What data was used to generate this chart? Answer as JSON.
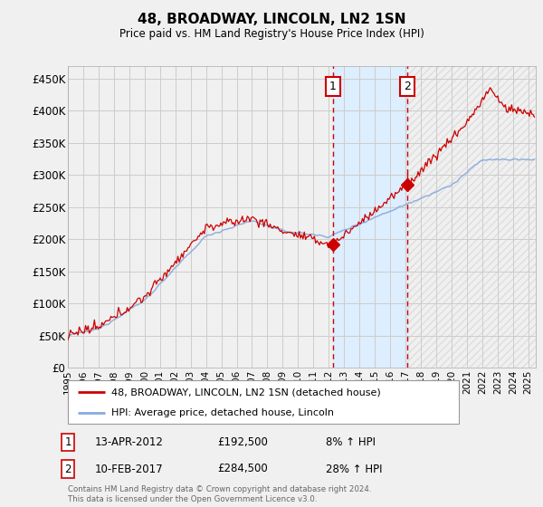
{
  "title": "48, BROADWAY, LINCOLN, LN2 1SN",
  "subtitle": "Price paid vs. HM Land Registry's House Price Index (HPI)",
  "ylabel_ticks": [
    "£0",
    "£50K",
    "£100K",
    "£150K",
    "£200K",
    "£250K",
    "£300K",
    "£350K",
    "£400K",
    "£450K"
  ],
  "ytick_values": [
    0,
    50000,
    100000,
    150000,
    200000,
    250000,
    300000,
    350000,
    400000,
    450000
  ],
  "ylim": [
    0,
    470000
  ],
  "xlim_start": 1995.0,
  "xlim_end": 2025.5,
  "purchase1_date": 2012.28,
  "purchase1_price": 192500,
  "purchase2_date": 2017.11,
  "purchase2_price": 284500,
  "legend_line1": "48, BROADWAY, LINCOLN, LN2 1SN (detached house)",
  "legend_line2": "HPI: Average price, detached house, Lincoln",
  "annotation1_date": "13-APR-2012",
  "annotation1_price": "£192,500",
  "annotation1_hpi": "8% ↑ HPI",
  "annotation2_date": "10-FEB-2017",
  "annotation2_price": "£284,500",
  "annotation2_hpi": "28% ↑ HPI",
  "footer": "Contains HM Land Registry data © Crown copyright and database right 2024.\nThis data is licensed under the Open Government Licence v3.0.",
  "line_color_property": "#cc0000",
  "line_color_hpi": "#88aadd",
  "shaded_region_color": "#ddeeff",
  "background_color": "#f0f0f0",
  "grid_color": "#cccccc",
  "plot_bg_color": "#f0f0f0"
}
